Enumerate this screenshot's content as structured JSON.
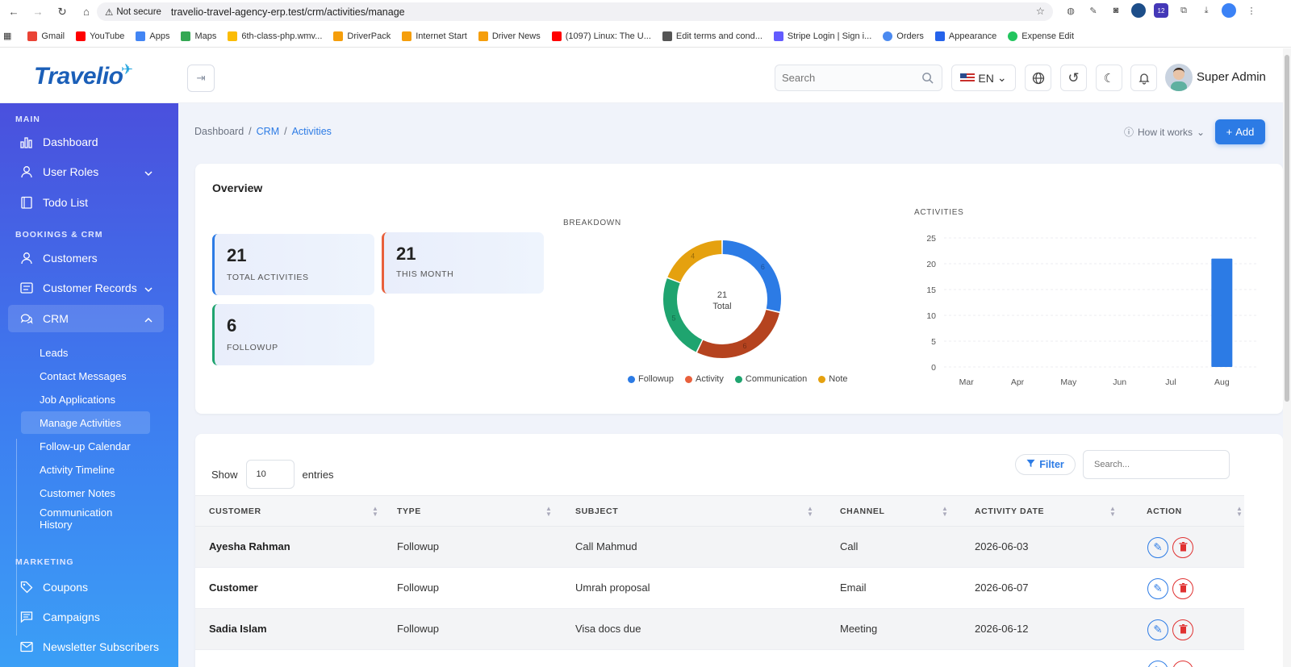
{
  "browser": {
    "security": "Not secure",
    "url": "travelio-travel-agency-erp.test/crm/activities/manage",
    "bookmarks": [
      "Gmail",
      "YouTube",
      "Apps",
      "Maps",
      "6th-class-php.wmv...",
      "DriverPack",
      "Internet Start",
      "Driver News",
      "(1097) Linux: The U...",
      "Edit terms and cond...",
      "Stripe Login | Sign i...",
      "Orders",
      "Appearance",
      "Expense Edit"
    ],
    "ext_badge": "12"
  },
  "header": {
    "logo": "Travelio",
    "search_placeholder": "Search",
    "lang": "EN",
    "user_name": "Super Admin"
  },
  "sidebar": {
    "sections": {
      "main": "MAIN",
      "bookings": "BOOKINGS & CRM",
      "marketing": "MARKETING"
    },
    "items": {
      "dashboard": "Dashboard",
      "user_roles": "User Roles",
      "todo": "Todo List",
      "customers": "Customers",
      "customer_records": "Customer Records",
      "crm": "CRM",
      "coupons": "Coupons",
      "campaigns": "Campaigns",
      "newsletter": "Newsletter Subscribers"
    },
    "crm_sub": {
      "leads": "Leads",
      "contact": "Contact Messages",
      "jobs": "Job Applications",
      "manage": "Manage Activities",
      "calendar": "Follow-up Calendar",
      "timeline": "Activity Timeline",
      "notes": "Customer Notes",
      "history": "Communication History"
    }
  },
  "breadcrumb": {
    "home": "Dashboard",
    "sep": "/",
    "crm": "CRM",
    "current": "Activities"
  },
  "actions": {
    "how": "How it works",
    "add": "Add"
  },
  "overview": {
    "title": "Overview",
    "stats": [
      {
        "value": "21",
        "label": "TOTAL ACTIVITIES"
      },
      {
        "value": "21",
        "label": "THIS MONTH"
      },
      {
        "value": "6",
        "label": "FOLLOWUP"
      }
    ],
    "breakdown_title": "BREAKDOWN",
    "activities_title": "ACTIVITIES"
  },
  "chart_data": [
    {
      "type": "pie",
      "title": "BREAKDOWN",
      "center_value": "21",
      "center_label": "Total",
      "categories": [
        "Followup",
        "Activity",
        "Communication",
        "Note"
      ],
      "values": [
        6,
        6,
        5,
        4
      ],
      "colors": [
        "#2c7be5",
        "#b5431f",
        "#1fa46f",
        "#e5a10f"
      ],
      "legend": "bottom"
    },
    {
      "type": "bar",
      "title": "ACTIVITIES",
      "categories": [
        "Mar",
        "Apr",
        "May",
        "Jun",
        "Jul",
        "Aug"
      ],
      "values": [
        0,
        0,
        0,
        0,
        0,
        21
      ],
      "ylim": [
        0,
        25
      ],
      "yticks": [
        0,
        5,
        10,
        15,
        20,
        25
      ],
      "color": "#2c7be5",
      "grid": true
    }
  ],
  "table": {
    "show": "Show",
    "entries_value": "10",
    "entries": "entries",
    "filter": "Filter",
    "search_placeholder": "Search...",
    "headers": [
      "CUSTOMER",
      "TYPE",
      "SUBJECT",
      "CHANNEL",
      "ACTIVITY DATE",
      "ACTION"
    ],
    "rows": [
      {
        "customer": "Ayesha Rahman",
        "type": "Followup",
        "subject": "Call Mahmud",
        "channel": "Call",
        "date": "2026-06-03"
      },
      {
        "customer": "Customer",
        "type": "Followup",
        "subject": "Umrah proposal",
        "channel": "Email",
        "date": "2026-06-07"
      },
      {
        "customer": "Sadia Islam",
        "type": "Followup",
        "subject": "Visa docs due",
        "channel": "Meeting",
        "date": "2026-06-12"
      }
    ]
  }
}
